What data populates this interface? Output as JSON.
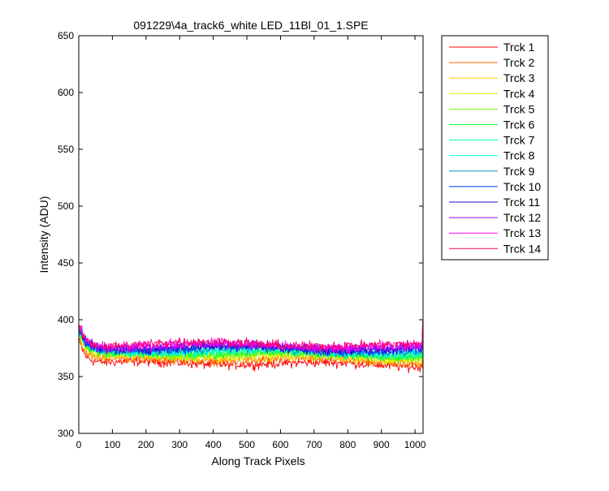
{
  "chart_data": {
    "type": "line",
    "title": "091229\\4a_track6_white LED_11Bl_01_1.SPE",
    "xlabel": "Along Track Pixels",
    "ylabel": "Intensity (ADU)",
    "xlim": [
      0,
      1024
    ],
    "ylim": [
      300,
      650
    ],
    "xticks": [
      0,
      100,
      200,
      300,
      400,
      500,
      600,
      700,
      800,
      900,
      1000
    ],
    "yticks": [
      300,
      350,
      400,
      450,
      500,
      550,
      600,
      650
    ],
    "grid": false,
    "legend_position": "outside-right",
    "x_range": [
      1,
      1024
    ],
    "series": [
      {
        "name": "Trck 1",
        "color": "#ff0000",
        "start": 382,
        "plateau": 361,
        "noise": 3.0
      },
      {
        "name": "Trck 2",
        "color": "#ff6a00",
        "start": 384,
        "plateau": 364,
        "noise": 3.0
      },
      {
        "name": "Trck 3",
        "color": "#ffcc00",
        "start": 386,
        "plateau": 366,
        "noise": 3.0
      },
      {
        "name": "Trck 4",
        "color": "#ccff00",
        "start": 387,
        "plateau": 368,
        "noise": 3.0
      },
      {
        "name": "Trck 5",
        "color": "#66ff00",
        "start": 388,
        "plateau": 369,
        "noise": 3.0
      },
      {
        "name": "Trck 6",
        "color": "#00ff33",
        "start": 389,
        "plateau": 370,
        "noise": 3.0
      },
      {
        "name": "Trck 7",
        "color": "#00ff99",
        "start": 390,
        "plateau": 371,
        "noise": 3.0
      },
      {
        "name": "Trck 8",
        "color": "#00ffee",
        "start": 391,
        "plateau": 372,
        "noise": 3.0
      },
      {
        "name": "Trck 9",
        "color": "#0099cc",
        "start": 392,
        "plateau": 373,
        "noise": 3.0
      },
      {
        "name": "Trck 10",
        "color": "#0033ff",
        "start": 393,
        "plateau": 374,
        "noise": 3.0
      },
      {
        "name": "Trck 11",
        "color": "#3300cc",
        "start": 394,
        "plateau": 375,
        "noise": 3.0
      },
      {
        "name": "Trck 12",
        "color": "#9900ff",
        "start": 395,
        "plateau": 376,
        "noise": 3.0
      },
      {
        "name": "Trck 13",
        "color": "#ff00ff",
        "start": 396,
        "plateau": 377,
        "noise": 3.0
      },
      {
        "name": "Trck 14",
        "color": "#ff0066",
        "start": 398,
        "plateau": 378,
        "noise": 3.0
      }
    ]
  }
}
